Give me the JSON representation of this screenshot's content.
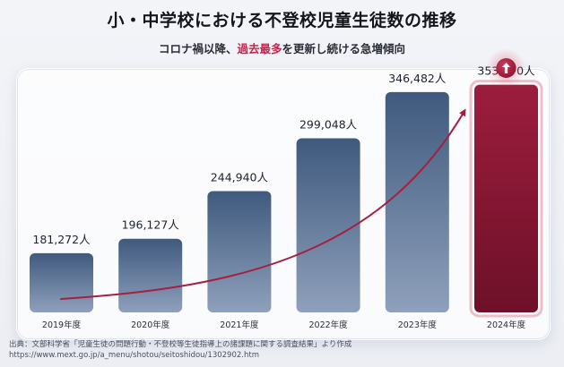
{
  "title": "小・中学校における不登校児童生徒数の推移",
  "subtitle": {
    "pre": "コロナ禍以降、",
    "highlight": "過去最多",
    "post": "を更新し続ける急増傾向"
  },
  "chart_data": {
    "type": "bar",
    "title": "小・中学校における不登校児童生徒数の推移",
    "categories": [
      "2019年度",
      "2020年度",
      "2021年度",
      "2022年度",
      "2023年度",
      "2024年度"
    ],
    "values": [
      181272,
      196127,
      244940,
      299048,
      346482,
      353970
    ],
    "data_labels": [
      "181,272人",
      "196,127人",
      "244,940人",
      "299,048人",
      "346,482人",
      "353,970人"
    ],
    "highlight_index": 5,
    "colors": {
      "bar": "#5a7596",
      "highlight": "#8e1a3a",
      "trend": "#a5203e"
    },
    "trend_arrow": true,
    "highlight_icon": "up-arrow-icon",
    "grid": false,
    "legend": "none"
  },
  "source": {
    "line1": "出典：文部科学省「児童生徒の問題行動・不登校等生徒指導上の諸課題に関する調査結果」より作成",
    "line2": "https://www.mext.go.jp/a_menu/shotou/seitoshidou/1302902.htm"
  }
}
